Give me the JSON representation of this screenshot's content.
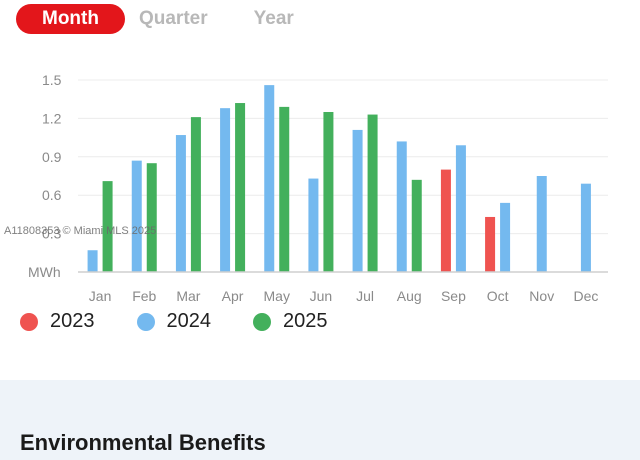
{
  "tabs": [
    {
      "label": "Month",
      "active": true
    },
    {
      "label": "Quarter",
      "active": false
    },
    {
      "label": "Year",
      "active": false
    }
  ],
  "watermark": "A11808353 © Miami MLS 2025",
  "section": {
    "title": "Environmental Benefits"
  },
  "colors": {
    "tab_active": "#e3161b",
    "s2023": "#ef5350",
    "s2024": "#74b9ef",
    "s2025": "#43b05c",
    "benefits_bg": "#eef3f9"
  },
  "chart_data": {
    "type": "bar",
    "unit_label": "MWh",
    "categories": [
      "Jan",
      "Feb",
      "Mar",
      "Apr",
      "May",
      "Jun",
      "Jul",
      "Aug",
      "Sep",
      "Oct",
      "Nov",
      "Dec"
    ],
    "yticks": [
      "1.5",
      "1.2",
      "0.9",
      "0.6",
      "0.3"
    ],
    "ylim": [
      0,
      1.5
    ],
    "grid": true,
    "legend_position": "bottom-left",
    "series": [
      {
        "name": "2023",
        "color": "#ef5350",
        "values": [
          null,
          null,
          null,
          null,
          null,
          null,
          null,
          null,
          0.8,
          0.43,
          null,
          null
        ]
      },
      {
        "name": "2024",
        "color": "#74b9ef",
        "values": [
          0.17,
          0.87,
          1.07,
          1.28,
          1.46,
          0.73,
          1.11,
          1.02,
          0.99,
          0.54,
          0.75,
          0.69
        ]
      },
      {
        "name": "2025",
        "color": "#43b05c",
        "values": [
          0.71,
          0.85,
          1.21,
          1.32,
          1.29,
          1.25,
          1.23,
          0.72,
          null,
          null,
          null,
          null
        ]
      }
    ]
  }
}
